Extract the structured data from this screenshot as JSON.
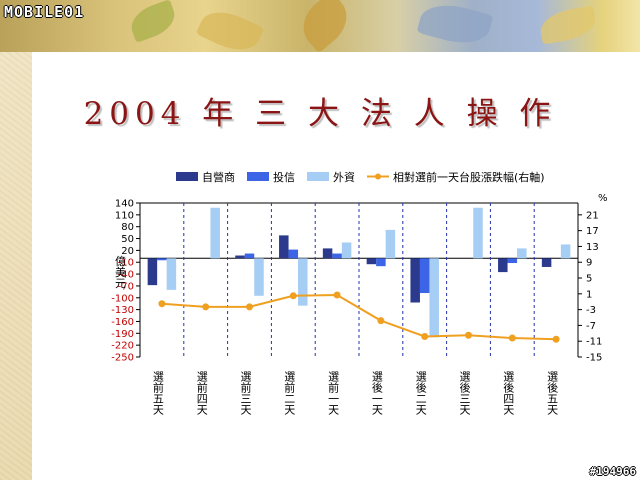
{
  "site": {
    "logo": "MOBILE01",
    "watermark": "#194966"
  },
  "title": "2004 年 三 大 法 人 操 作",
  "colors": {
    "dealer": "#2b3a8c",
    "trust": "#3b64e6",
    "foreign": "#a6cdf4",
    "index": "#f0a020",
    "axis_left": "#c00000"
  },
  "chart_data": {
    "type": "bar",
    "categories": [
      "選前五天",
      "選前四天",
      "選前三天",
      "選前二天",
      "選前一天",
      "選後一天",
      "選後二天",
      "選後三天",
      "選後四天",
      "選後五天"
    ],
    "series": [
      {
        "name": "自營商",
        "type": "bar",
        "axis": "left",
        "values": [
          -68,
          0,
          7,
          58,
          25,
          -15,
          -112,
          0,
          -35,
          -22
        ]
      },
      {
        "name": "投信",
        "type": "bar",
        "axis": "left",
        "values": [
          -5,
          0,
          12,
          22,
          12,
          -20,
          -88,
          0,
          -12,
          0
        ]
      },
      {
        "name": "外資",
        "type": "bar",
        "axis": "left",
        "values": [
          -80,
          128,
          -95,
          -120,
          40,
          72,
          -200,
          128,
          25,
          35
        ]
      },
      {
        "name": "相對選前一天台股漲跌幅(右軸)",
        "type": "line",
        "axis": "right",
        "values": [
          -1.5,
          -2.3,
          -2.3,
          0.5,
          0.7,
          -5.8,
          -9.8,
          -9.5,
          -10.2,
          -10.5
        ]
      }
    ],
    "ylabel": "億美元",
    "y2label": "%",
    "ylim": [
      -250,
      140
    ],
    "y2lim": [
      -15,
      24
    ],
    "yticks": [
      140,
      110,
      80,
      50,
      20,
      -10,
      -40,
      -70,
      -100,
      -130,
      -160,
      -190,
      -220,
      -250
    ],
    "y2ticks": [
      21,
      17,
      13,
      9,
      5,
      1,
      -3,
      -7,
      -11,
      -15
    ],
    "legend_position": "top"
  }
}
